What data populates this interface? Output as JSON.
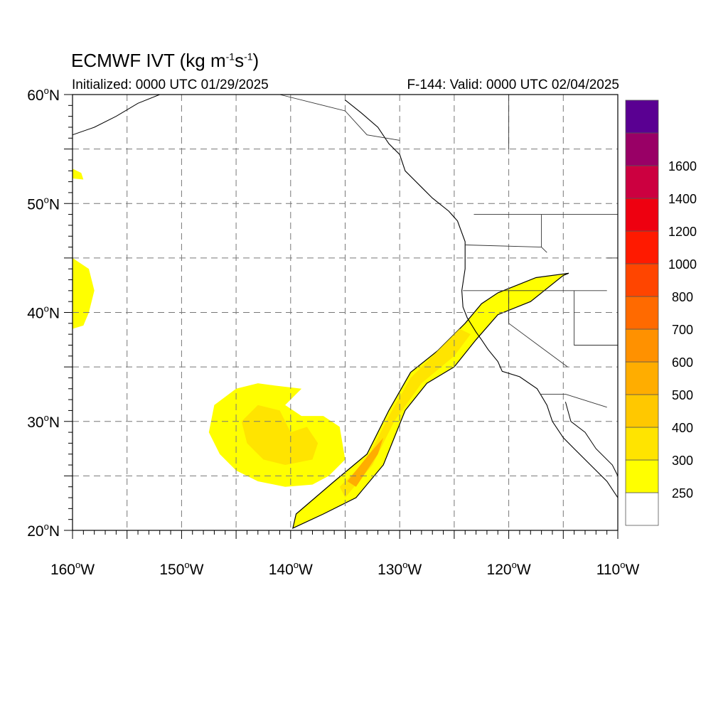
{
  "title": {
    "prefix": "ECMWF IVT (kg m",
    "exp1": "-1",
    "middle": "s",
    "exp2": "-1",
    "suffix": ")"
  },
  "subtitle_left": "Initialized: 0000 UTC 01/29/2025",
  "subtitle_right": "F-144: Valid: 0000 UTC 02/04/2025",
  "map": {
    "lon_range": [
      -160,
      -110
    ],
    "lat_range": [
      20,
      60
    ],
    "grid": "dashed every 5 degrees",
    "lon_labels": [
      {
        "deg": "160",
        "hem": "W",
        "lon": -160
      },
      {
        "deg": "150",
        "hem": "W",
        "lon": -150
      },
      {
        "deg": "140",
        "hem": "W",
        "lon": -140
      },
      {
        "deg": "130",
        "hem": "W",
        "lon": -130
      },
      {
        "deg": "120",
        "hem": "W",
        "lon": -120
      },
      {
        "deg": "110",
        "hem": "W",
        "lon": -110
      }
    ],
    "lat_labels": [
      {
        "deg": "60",
        "hem": "N",
        "lat": 60
      },
      {
        "deg": "50",
        "hem": "N",
        "lat": 50
      },
      {
        "deg": "40",
        "hem": "N",
        "lat": 40
      },
      {
        "deg": "30",
        "hem": "N",
        "lat": 30
      },
      {
        "deg": "20",
        "hem": "N",
        "lat": 20
      }
    ],
    "coast_color": "#000000",
    "atmospheric_river_lonlat": [
      [
        -139.8,
        20.2
      ],
      [
        -137.0,
        21.5
      ],
      [
        -134.0,
        23.0
      ],
      [
        -131.5,
        26.0
      ],
      [
        -129.5,
        31.0
      ],
      [
        -127.5,
        33.5
      ],
      [
        -125.0,
        35.0
      ],
      [
        -123.0,
        37.5
      ],
      [
        -121.0,
        39.8
      ],
      [
        -118.0,
        41.0
      ],
      [
        -115.0,
        43.4
      ],
      [
        -114.5,
        43.6
      ],
      [
        -117.5,
        43.2
      ],
      [
        -119.5,
        42.4
      ],
      [
        -121.0,
        41.8
      ],
      [
        -122.5,
        40.8
      ],
      [
        -124.0,
        39.0
      ],
      [
        -126.5,
        36.5
      ],
      [
        -129.0,
        34.5
      ],
      [
        -131.0,
        31.0
      ],
      [
        -133.0,
        27.0
      ],
      [
        -136.0,
        24.5
      ],
      [
        -139.5,
        21.5
      ]
    ],
    "ar_core_lonlat": [
      [
        -135.0,
        23.0
      ],
      [
        -132.5,
        26.0
      ],
      [
        -130.5,
        30.0
      ],
      [
        -128.0,
        33.5
      ],
      [
        -125.0,
        36.0
      ],
      [
        -123.5,
        38.0
      ],
      [
        -124.5,
        38.5
      ],
      [
        -126.5,
        36.5
      ],
      [
        -129.0,
        34.0
      ],
      [
        -131.0,
        30.5
      ],
      [
        -133.0,
        26.5
      ],
      [
        -135.5,
        24.0
      ]
    ],
    "ar_peak_lonlat": [
      [
        -134.0,
        24.0
      ],
      [
        -132.0,
        27.0
      ],
      [
        -131.5,
        28.5
      ],
      [
        -132.8,
        27.0
      ],
      [
        -134.8,
        24.5
      ]
    ],
    "cyclone_outer_lonlat": [
      [
        -140.5,
        24.0
      ],
      [
        -138.0,
        24.2
      ],
      [
        -136.5,
        25.0
      ],
      [
        -135.0,
        26.5
      ],
      [
        -135.5,
        29.5
      ],
      [
        -137.0,
        30.5
      ],
      [
        -139.0,
        30.5
      ],
      [
        -140.5,
        31.5
      ],
      [
        -139.0,
        33.0
      ],
      [
        -141.5,
        33.3
      ],
      [
        -143.0,
        33.5
      ],
      [
        -145.0,
        33.0
      ],
      [
        -147.0,
        31.5
      ],
      [
        -147.5,
        29.0
      ],
      [
        -146.5,
        27.0
      ],
      [
        -145.0,
        25.5
      ],
      [
        -143.0,
        24.5
      ]
    ],
    "cyclone_inner_lonlat": [
      [
        -140.5,
        26.0
      ],
      [
        -138.0,
        26.5
      ],
      [
        -137.5,
        28.0
      ],
      [
        -138.5,
        29.5
      ],
      [
        -140.0,
        29.0
      ],
      [
        -141.0,
        31.0
      ],
      [
        -143.0,
        31.5
      ],
      [
        -144.5,
        30.0
      ],
      [
        -144.0,
        28.0
      ],
      [
        -142.5,
        26.5
      ]
    ],
    "west_blob_lonlat": [
      [
        -160.0,
        38.5
      ],
      [
        -159.0,
        38.8
      ],
      [
        -158.5,
        40.0
      ],
      [
        -158.0,
        42.0
      ],
      [
        -158.5,
        44.0
      ],
      [
        -160.0,
        45.0
      ]
    ],
    "small_blob_lonlat": [
      [
        -160.0,
        53.2
      ],
      [
        -159.2,
        52.8
      ],
      [
        -159.0,
        52.2
      ],
      [
        -160.0,
        52.3
      ]
    ],
    "coast_lonlat": [
      [
        -135.0,
        59.5
      ],
      [
        -133.5,
        58.3
      ],
      [
        -132.0,
        57.0
      ],
      [
        -131.0,
        55.5
      ],
      [
        -130.0,
        54.5
      ],
      [
        -129.5,
        53.0
      ],
      [
        -128.0,
        51.5
      ],
      [
        -127.0,
        50.5
      ],
      [
        -125.5,
        49.3
      ],
      [
        -124.7,
        48.4
      ],
      [
        -124.0,
        46.5
      ],
      [
        -124.0,
        44.0
      ],
      [
        -124.3,
        42.0
      ],
      [
        -124.2,
        40.5
      ],
      [
        -123.8,
        39.5
      ],
      [
        -123.0,
        38.2
      ],
      [
        -122.5,
        37.5
      ],
      [
        -121.9,
        36.6
      ],
      [
        -121.0,
        35.5
      ],
      [
        -120.6,
        34.6
      ],
      [
        -119.0,
        34.1
      ],
      [
        -117.4,
        33.0
      ],
      [
        -117.1,
        32.5
      ],
      [
        -116.5,
        31.5
      ],
      [
        -116.0,
        30.0
      ],
      [
        -115.0,
        28.5
      ],
      [
        -114.0,
        27.5
      ],
      [
        -112.5,
        26.0
      ],
      [
        -111.0,
        24.5
      ],
      [
        -110.0,
        23.0
      ]
    ],
    "gulf_coast_lonlat": [
      [
        -114.8,
        31.8
      ],
      [
        -114.3,
        30.0
      ],
      [
        -113.0,
        29.0
      ],
      [
        -112.0,
        27.5
      ],
      [
        -110.5,
        26.0
      ],
      [
        -110.0,
        25.0
      ]
    ],
    "alaska_coast_lonlat": [
      [
        -160.0,
        56.3
      ],
      [
        -158.0,
        57.0
      ],
      [
        -156.0,
        58.0
      ],
      [
        -154.0,
        59.2
      ],
      [
        -152.0,
        60.0
      ]
    ],
    "borders_lonlat": [
      [
        [
          -123.2,
          49.0
        ],
        [
          -110.0,
          49.0
        ]
      ],
      [
        [
          -124.2,
          42.0
        ],
        [
          -111.0,
          42.0
        ]
      ],
      [
        [
          -120.0,
          42.0
        ],
        [
          -120.0,
          39.0
        ],
        [
          -114.6,
          35.0
        ]
      ],
      [
        [
          -117.1,
          32.5
        ],
        [
          -114.8,
          32.5
        ],
        [
          -111.0,
          31.3
        ]
      ],
      [
        [
          -117.0,
          49.0
        ],
        [
          -117.0,
          46.0
        ],
        [
          -116.5,
          45.5
        ]
      ],
      [
        [
          -114.0,
          42.0
        ],
        [
          -114.0,
          37.0
        ],
        [
          -110.0,
          37.0
        ]
      ],
      [
        [
          -111.0,
          45.0
        ],
        [
          -110.0,
          45.0
        ]
      ],
      [
        [
          -120.0,
          60.0
        ],
        [
          -120.0,
          55.0
        ]
      ],
      [
        [
          -141.0,
          60.0
        ],
        [
          -137.0,
          59.0
        ],
        [
          -135.0,
          58.5
        ],
        [
          -133.0,
          56.3
        ],
        [
          -130.0,
          55.8
        ]
      ],
      [
        [
          -124.0,
          46.2
        ],
        [
          -117.0,
          46.0
        ]
      ]
    ]
  },
  "colorbar": {
    "colors": [
      "#ffffff",
      "#ffff00",
      "#ffe400",
      "#ffc800",
      "#ffad00",
      "#ff9100",
      "#ff6a00",
      "#ff4500",
      "#ff1a00",
      "#ee0010",
      "#cc0040",
      "#990066",
      "#5a0092"
    ],
    "labels": [
      "250",
      "300",
      "400",
      "500",
      "600",
      "700",
      "800",
      "1000",
      "1200",
      "1400",
      "1600"
    ]
  }
}
